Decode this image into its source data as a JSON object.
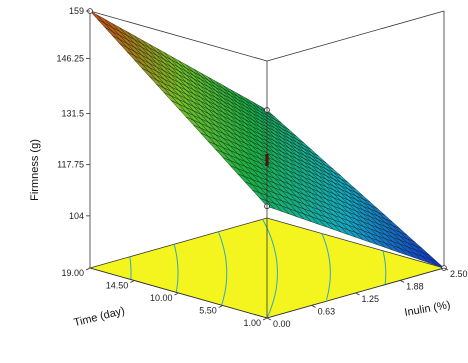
{
  "chart_data": {
    "type": "surface3d",
    "zlabel": "Firmness (g)",
    "xlabel": "Time (day)",
    "ylabel": "Inulin (%)",
    "z_ticks": [
      "159",
      "146.25",
      "131.5",
      "117.75",
      "104"
    ],
    "z_tick_values": [
      159,
      146.25,
      131.5,
      117.75,
      104
    ],
    "x_ticks": [
      "19.00",
      "14.50",
      "10.00",
      "5.50",
      "1.00"
    ],
    "x_tick_values": [
      19.0,
      14.5,
      10.0,
      5.5,
      1.0
    ],
    "y_ticks": [
      "0.00",
      "0.63",
      "1.25",
      "1.88",
      "2.50"
    ],
    "y_tick_values": [
      0.0,
      0.63,
      1.25,
      1.88,
      2.5
    ],
    "xlim": [
      1.0,
      19.0
    ],
    "ylim": [
      0.0,
      2.5
    ],
    "zlim": [
      90.0,
      159.0
    ],
    "corners": {
      "time_1_inulin_0": 120.0,
      "time_19_inulin_0": 159.0,
      "time_1_inulin_2.5": 90.0,
      "time_19_inulin_2.5": 119.0
    },
    "center_point": {
      "time": 10.0,
      "inulin": 1.25,
      "firmness": 119.0
    },
    "colors": {
      "low": "#1a3fd8",
      "mid": "#20b24a",
      "high": "#d84010",
      "floor": "#f4f41e",
      "contour": "#2ea8c8"
    }
  }
}
